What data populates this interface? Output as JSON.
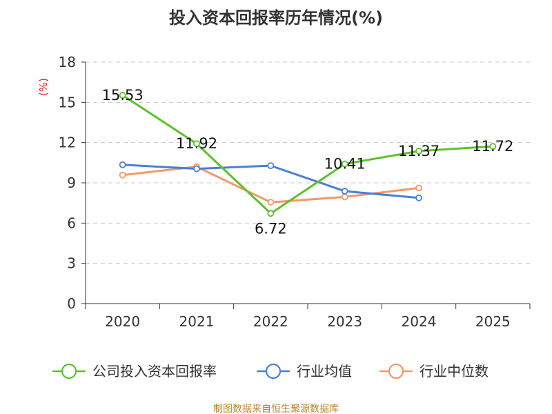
{
  "chart_data": {
    "type": "line",
    "title": "投入资本回报率历年情况(%)",
    "ylabel": "(%)",
    "xlabel": "",
    "ylim": [
      0,
      18
    ],
    "yticks": [
      0,
      3,
      6,
      9,
      12,
      15,
      18
    ],
    "categories": [
      "2020",
      "2021",
      "2022",
      "2023",
      "2024",
      "2025"
    ],
    "grid": true,
    "legend_position": "bottom",
    "series": [
      {
        "name": "公司投入资本回报率",
        "color": "#5cc12b",
        "values": [
          15.53,
          11.92,
          6.72,
          10.41,
          11.37,
          11.72
        ],
        "labels": [
          "15.53",
          "11.92",
          "6.72",
          "10.41",
          "11.37",
          "11.72"
        ]
      },
      {
        "name": "行业均值",
        "color": "#4a7fd6",
        "values": [
          10.35,
          10.05,
          10.28,
          8.38,
          7.88,
          null
        ]
      },
      {
        "name": "行业中位数",
        "color": "#f59766",
        "values": [
          9.58,
          10.2,
          7.55,
          7.95,
          8.62,
          null
        ]
      }
    ],
    "source": "制图数据来自恒生聚源数据库"
  }
}
